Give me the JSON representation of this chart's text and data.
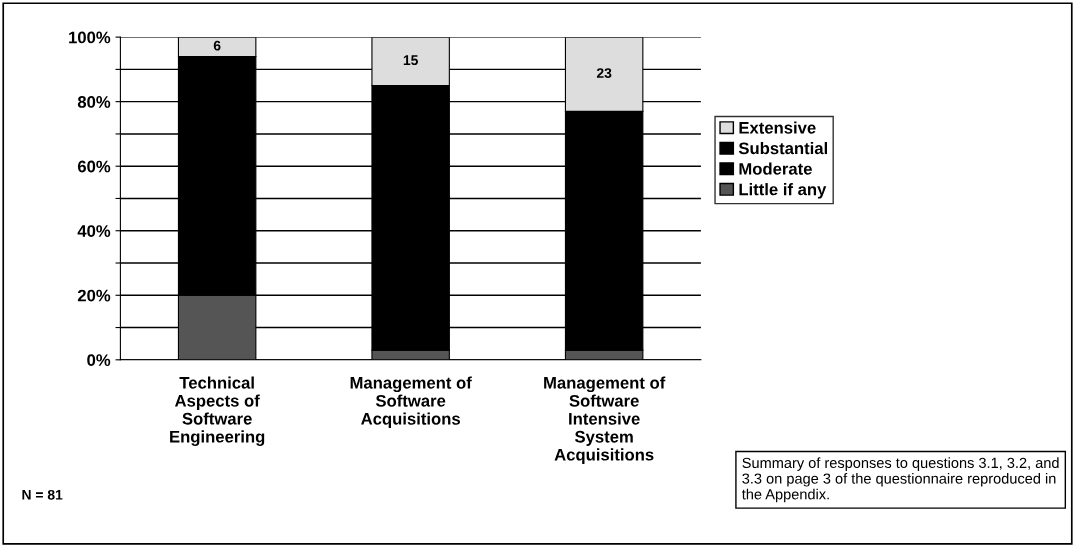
{
  "chart_data": {
    "type": "bar",
    "stacked": true,
    "categories": [
      "Technical\nAspects of\nSoftware\nEngineering",
      "Management of\nSoftware\nAcquisitions",
      "Management of\nSoftware\nIntensive\nSystem\nAcquisitions"
    ],
    "series": [
      {
        "name": "Little if any",
        "color": "#555555",
        "values": [
          20,
          3,
          3
        ]
      },
      {
        "color": "#000000",
        "values": [
          74,
          82,
          74
        ]
      },
      {
        "name": "Moderate",
        "color": "#000000",
        "values": [
          null,
          null,
          null
        ]
      },
      {
        "name": "Substantial",
        "color": "#000000",
        "values": [
          null,
          null,
          null
        ]
      },
      {
        "name": "Extensive",
        "color": "#dddddd",
        "values": [
          6,
          15,
          23
        ],
        "value_labels": [
          "6",
          "15",
          "23"
        ]
      }
    ],
    "ylim": [
      0,
      100
    ],
    "yticks": [
      {
        "value": 0,
        "label": "0%"
      },
      {
        "value": 10,
        "label": null
      },
      {
        "value": 20,
        "label": "20%"
      },
      {
        "value": 30,
        "label": null
      },
      {
        "value": 40,
        "label": "40%"
      },
      {
        "value": 50,
        "label": null
      },
      {
        "value": 60,
        "label": "60%"
      },
      {
        "value": 70,
        "label": null
      },
      {
        "value": 80,
        "label": "80%"
      },
      {
        "value": 90,
        "label": null
      },
      {
        "value": 100,
        "label": "100%"
      }
    ],
    "grid": "y",
    "legend": "right",
    "annotations": [
      "N = 81",
      "Summary of responses to questions 3.1, 3.2, and 3.3 on page 3 of the questionnaire reproduced in the Appendix."
    ]
  }
}
